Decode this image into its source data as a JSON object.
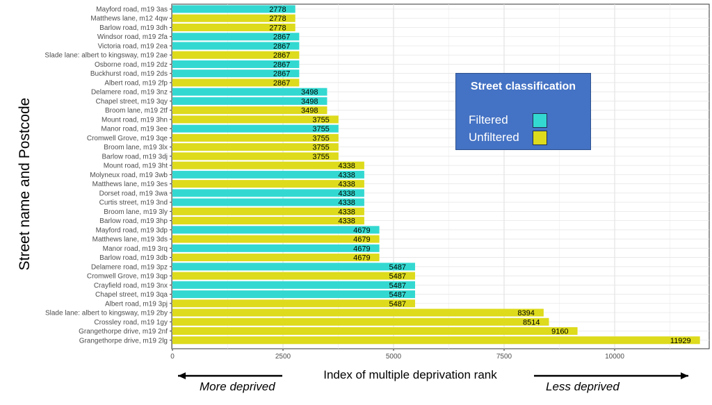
{
  "chart_data": {
    "type": "bar",
    "orientation": "horizontal",
    "xlabel": "Index of multiple deprivation rank",
    "ylabel": "Street name and Postcode",
    "xlim": [
      0,
      12000
    ],
    "xticks": [
      0,
      2500,
      5000,
      7500,
      10000
    ],
    "grid": true,
    "direction_left": "More deprived",
    "direction_right": "Less deprived",
    "legend": {
      "title": "Street classification",
      "placement": "right",
      "entries": [
        {
          "name": "Filtered",
          "color": "#33d9d1"
        },
        {
          "name": "Unfiltered",
          "color": "#dddb1c"
        }
      ]
    },
    "bars": [
      {
        "label": "Mayford road, m19 3as",
        "value": 2778,
        "class": "Filtered"
      },
      {
        "label": "Matthews lane, m12 4qw",
        "value": 2778,
        "class": "Unfiltered"
      },
      {
        "label": "Barlow road, m19 3dh",
        "value": 2778,
        "class": "Unfiltered"
      },
      {
        "label": "Windsor road, m19 2fa",
        "value": 2867,
        "class": "Filtered"
      },
      {
        "label": "Victoria road, m19 2ea",
        "value": 2867,
        "class": "Filtered"
      },
      {
        "label": "Slade lane: albert to kingsway, m19 2ae",
        "value": 2867,
        "class": "Unfiltered"
      },
      {
        "label": "Osborne road, m19 2dz",
        "value": 2867,
        "class": "Filtered"
      },
      {
        "label": "Buckhurst road, m19 2ds",
        "value": 2867,
        "class": "Filtered"
      },
      {
        "label": "Albert road, m19 2fp",
        "value": 2867,
        "class": "Unfiltered"
      },
      {
        "label": "Delamere road, m19 3nz",
        "value": 3498,
        "class": "Filtered"
      },
      {
        "label": "Chapel street, m19 3qy",
        "value": 3498,
        "class": "Filtered"
      },
      {
        "label": "Broom lane, m19 2tf",
        "value": 3498,
        "class": "Unfiltered"
      },
      {
        "label": "Mount road, m19 3hn",
        "value": 3755,
        "class": "Unfiltered"
      },
      {
        "label": "Manor road, m19 3ee",
        "value": 3755,
        "class": "Filtered"
      },
      {
        "label": "Cromwell Grove, m19 3qe",
        "value": 3755,
        "class": "Unfiltered"
      },
      {
        "label": "Broom lane, m19 3lx",
        "value": 3755,
        "class": "Unfiltered"
      },
      {
        "label": "Barlow road, m19 3dj",
        "value": 3755,
        "class": "Unfiltered"
      },
      {
        "label": "Mount road, m19 3ht",
        "value": 4338,
        "class": "Unfiltered"
      },
      {
        "label": "Molyneux road, m19 3wb",
        "value": 4338,
        "class": "Filtered"
      },
      {
        "label": "Matthews lane, m19 3es",
        "value": 4338,
        "class": "Unfiltered"
      },
      {
        "label": "Dorset road, m19 3wa",
        "value": 4338,
        "class": "Filtered"
      },
      {
        "label": "Curtis street, m19 3nd",
        "value": 4338,
        "class": "Filtered"
      },
      {
        "label": "Broom lane, m19 3ly",
        "value": 4338,
        "class": "Unfiltered"
      },
      {
        "label": "Barlow road, m19 3hp",
        "value": 4338,
        "class": "Unfiltered"
      },
      {
        "label": "Mayford road, m19 3dp",
        "value": 4679,
        "class": "Filtered"
      },
      {
        "label": "Matthews lane, m19 3ds",
        "value": 4679,
        "class": "Unfiltered"
      },
      {
        "label": "Manor road, m19 3rq",
        "value": 4679,
        "class": "Filtered"
      },
      {
        "label": "Barlow road, m19 3db",
        "value": 4679,
        "class": "Unfiltered"
      },
      {
        "label": "Delamere road, m19 3pz",
        "value": 5487,
        "class": "Filtered"
      },
      {
        "label": "Cromwell Grove, m19 3qp",
        "value": 5487,
        "class": "Unfiltered"
      },
      {
        "label": "Crayfield road, m19 3nx",
        "value": 5487,
        "class": "Filtered"
      },
      {
        "label": "Chapel street, m19 3qa",
        "value": 5487,
        "class": "Filtered"
      },
      {
        "label": "Albert road, m19 3pj",
        "value": 5487,
        "class": "Unfiltered"
      },
      {
        "label": "Slade lane: albert to kingsway, m19 2by",
        "value": 8394,
        "class": "Unfiltered"
      },
      {
        "label": "Crossley road, m19 1gy",
        "value": 8514,
        "class": "Unfiltered"
      },
      {
        "label": "Grangethorpe drive, m19 2nf",
        "value": 9160,
        "class": "Unfiltered"
      },
      {
        "label": "Grangethorpe drive, m19 2lg",
        "value": 11929,
        "class": "Unfiltered"
      }
    ]
  }
}
